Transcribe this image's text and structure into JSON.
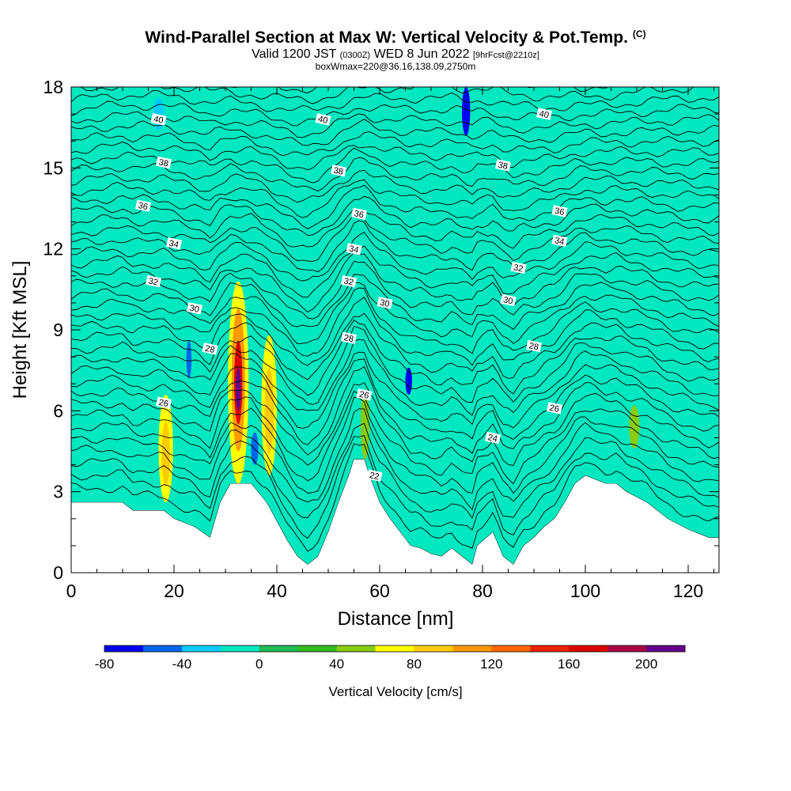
{
  "chart_data": {
    "type": "heatmap",
    "title": "Wind-Parallel Section at Max W: Vertical Velocity & Pot.Temp.",
    "title_mark": "(C)",
    "subtitle": {
      "valid": "Valid 1200 JST",
      "utc": "(0300Z)",
      "date": "WED 8 Jun 2022",
      "forecast": "[9hrFcst@2210z]"
    },
    "box_info": "boxWmax=220@36.16,138.09,2750m",
    "xlabel": "Distance [nm]",
    "ylabel": "Height [Kft MSL]",
    "xlim": [
      0,
      126
    ],
    "ylim": [
      0,
      18
    ],
    "xticks": [
      0,
      20,
      40,
      60,
      80,
      100,
      120
    ],
    "yticks": [
      0,
      3,
      6,
      9,
      12,
      15,
      18
    ],
    "colorbar": {
      "label": "Vertical Velocity [cm/s]",
      "tick_labels": [
        -80,
        -40,
        0,
        40,
        80,
        120,
        160,
        200
      ],
      "bounds": [
        -80,
        -60,
        -40,
        -20,
        0,
        20,
        40,
        60,
        80,
        100,
        120,
        140,
        160,
        180,
        200,
        220
      ],
      "colors": [
        "#0000ee",
        "#0066ee",
        "#00ccff",
        "#00e8c0",
        "#22bb55",
        "#33bb22",
        "#88cc11",
        "#ffff00",
        "#ffcc00",
        "#ff9900",
        "#ff6600",
        "#ee2200",
        "#dd0000",
        "#aa0044",
        "#660088"
      ]
    },
    "background_color": "#00e8c0",
    "terrain_color": "#ffffff",
    "terrain_top_kft": [
      [
        0,
        2.6
      ],
      [
        10,
        2.6
      ],
      [
        12,
        2.3
      ],
      [
        18,
        2.3
      ],
      [
        20,
        2.0
      ],
      [
        24,
        1.7
      ],
      [
        27,
        1.3
      ],
      [
        29,
        2.6
      ],
      [
        31,
        3.3
      ],
      [
        35,
        3.3
      ],
      [
        38,
        2.6
      ],
      [
        40,
        1.9
      ],
      [
        42,
        1.2
      ],
      [
        44,
        0.6
      ],
      [
        46,
        0.3
      ],
      [
        48,
        0.6
      ],
      [
        50,
        1.5
      ],
      [
        52,
        2.6
      ],
      [
        54,
        3.6
      ],
      [
        55,
        4.2
      ],
      [
        57,
        4.2
      ],
      [
        58,
        3.6
      ],
      [
        60,
        2.6
      ],
      [
        62,
        2.0
      ],
      [
        64,
        1.5
      ],
      [
        66,
        1.0
      ],
      [
        68,
        0.9
      ],
      [
        70,
        0.7
      ],
      [
        72,
        0.6
      ],
      [
        74,
        0.9
      ],
      [
        76,
        0.6
      ],
      [
        78,
        0.3
      ],
      [
        79,
        1.0
      ],
      [
        82,
        1.5
      ],
      [
        84,
        0.6
      ],
      [
        86,
        0.3
      ],
      [
        88,
        1.0
      ],
      [
        90,
        1.3
      ],
      [
        92,
        1.7
      ],
      [
        94,
        2.0
      ],
      [
        96,
        2.6
      ],
      [
        98,
        3.3
      ],
      [
        100,
        3.6
      ],
      [
        104,
        3.3
      ],
      [
        106,
        3.3
      ],
      [
        108,
        3.0
      ],
      [
        112,
        2.6
      ],
      [
        116,
        2.0
      ],
      [
        120,
        1.6
      ],
      [
        124,
        1.3
      ],
      [
        126,
        1.3
      ]
    ],
    "theta_levels_C": [
      20,
      22,
      24,
      26,
      28,
      30,
      32,
      34,
      36,
      38,
      40
    ],
    "theta_contour_labels": [
      {
        "x": 18,
        "y": 6.3,
        "v": "26"
      },
      {
        "x": 27,
        "y": 8.3,
        "v": "28"
      },
      {
        "x": 24,
        "y": 9.8,
        "v": "30"
      },
      {
        "x": 16,
        "y": 10.8,
        "v": "32"
      },
      {
        "x": 20,
        "y": 12.2,
        "v": "34"
      },
      {
        "x": 14,
        "y": 13.6,
        "v": "36"
      },
      {
        "x": 18,
        "y": 15.2,
        "v": "38"
      },
      {
        "x": 17,
        "y": 16.8,
        "v": "40"
      },
      {
        "x": 49,
        "y": 16.8,
        "v": "40"
      },
      {
        "x": 52,
        "y": 14.9,
        "v": "38"
      },
      {
        "x": 56,
        "y": 13.3,
        "v": "36"
      },
      {
        "x": 55,
        "y": 12.0,
        "v": "34"
      },
      {
        "x": 54,
        "y": 10.8,
        "v": "32"
      },
      {
        "x": 61,
        "y": 10.0,
        "v": "30"
      },
      {
        "x": 54,
        "y": 8.7,
        "v": "28"
      },
      {
        "x": 57,
        "y": 6.6,
        "v": "26"
      },
      {
        "x": 59,
        "y": 3.6,
        "v": "22"
      },
      {
        "x": 82,
        "y": 5.0,
        "v": "24"
      },
      {
        "x": 94,
        "y": 6.1,
        "v": "26"
      },
      {
        "x": 90,
        "y": 8.4,
        "v": "28"
      },
      {
        "x": 85,
        "y": 10.1,
        "v": "30"
      },
      {
        "x": 87,
        "y": 11.3,
        "v": "32"
      },
      {
        "x": 95,
        "y": 12.3,
        "v": "34"
      },
      {
        "x": 95,
        "y": 13.4,
        "v": "36"
      },
      {
        "x": 84,
        "y": 15.1,
        "v": "38"
      },
      {
        "x": 92,
        "y": 17.0,
        "v": "40"
      }
    ],
    "w_regions_cm_s": [
      {
        "x0": 30.5,
        "x1": 34.5,
        "y0": 3.3,
        "y1": 10.8,
        "w": 60
      },
      {
        "x0": 31.2,
        "x1": 33.8,
        "y0": 4.5,
        "y1": 9.8,
        "w": 100
      },
      {
        "x0": 31.7,
        "x1": 33.3,
        "y0": 5.5,
        "y1": 8.6,
        "w": 160
      },
      {
        "x0": 32.0,
        "x1": 33.0,
        "y0": 6.0,
        "y1": 7.6,
        "w": 200
      },
      {
        "x0": 37.0,
        "x1": 40.0,
        "y0": 3.6,
        "y1": 8.8,
        "w": 60
      },
      {
        "x0": 37.6,
        "x1": 39.4,
        "y0": 4.4,
        "y1": 7.6,
        "w": 90
      },
      {
        "x0": 17.0,
        "x1": 19.8,
        "y0": 2.6,
        "y1": 6.6,
        "w": 60
      },
      {
        "x0": 17.6,
        "x1": 19.2,
        "y0": 3.2,
        "y1": 5.6,
        "w": 90
      },
      {
        "x0": 56.3,
        "x1": 58.0,
        "y0": 4.2,
        "y1": 6.8,
        "w": 50
      },
      {
        "x0": 108.5,
        "x1": 110.5,
        "y0": 4.6,
        "y1": 6.2,
        "w": 50
      },
      {
        "x0": 76.0,
        "x1": 77.6,
        "y0": 16.2,
        "y1": 18.0,
        "w": -70
      },
      {
        "x0": 65.0,
        "x1": 66.3,
        "y0": 6.6,
        "y1": 7.6,
        "w": -70
      },
      {
        "x0": 22.4,
        "x1": 23.4,
        "y0": 7.2,
        "y1": 8.6,
        "w": -60
      },
      {
        "x0": 16.0,
        "x1": 18.0,
        "y0": 16.4,
        "y1": 17.6,
        "w": -40
      },
      {
        "x0": 35.0,
        "x1": 36.4,
        "y0": 4.0,
        "y1": 5.2,
        "w": -45
      }
    ]
  }
}
